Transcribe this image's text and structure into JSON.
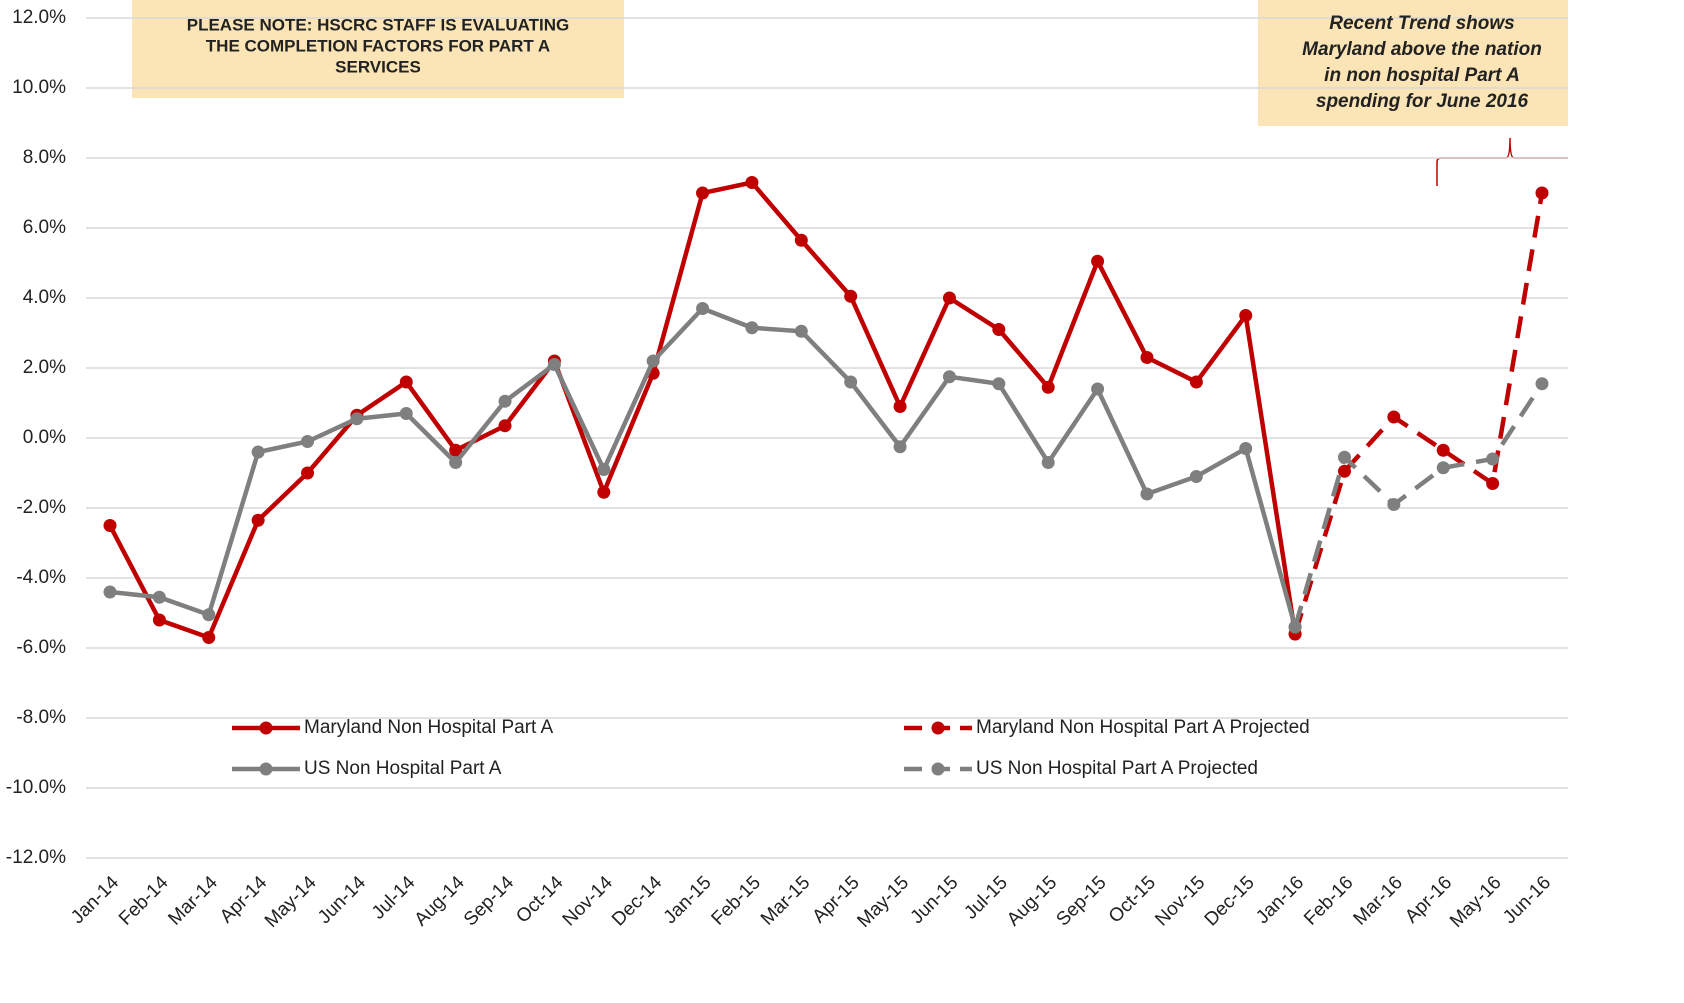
{
  "chart_data": {
    "type": "line",
    "categories": [
      "Jan-14",
      "Feb-14",
      "Mar-14",
      "Apr-14",
      "May-14",
      "Jun-14",
      "Jul-14",
      "Aug-14",
      "Sep-14",
      "Oct-14",
      "Nov-14",
      "Dec-14",
      "Jan-15",
      "Feb-15",
      "Mar-15",
      "Apr-15",
      "May-15",
      "Jun-15",
      "Jul-15",
      "Aug-15",
      "Sep-15",
      "Oct-15",
      "Nov-15",
      "Dec-15",
      "Jan-16",
      "Feb-16",
      "Mar-16",
      "Apr-16",
      "May-16",
      "Jun-16"
    ],
    "series": [
      {
        "name": "Maryland Non Hospital Part A",
        "color": "#c00000",
        "dashed": false,
        "values": [
          -2.5,
          -5.2,
          -5.7,
          -2.35,
          -1.0,
          0.65,
          1.6,
          -0.35,
          0.35,
          2.2,
          -1.55,
          1.85,
          7.0,
          7.3,
          5.65,
          4.05,
          0.9,
          4.0,
          3.1,
          1.45,
          5.05,
          2.3,
          1.6,
          3.5,
          -5.6,
          null,
          null,
          null,
          null,
          null
        ]
      },
      {
        "name": "Maryland Non Hospital Part A Projected",
        "color": "#c00000",
        "dashed": true,
        "values": [
          null,
          null,
          null,
          null,
          null,
          null,
          null,
          null,
          null,
          null,
          null,
          null,
          null,
          null,
          null,
          null,
          null,
          null,
          null,
          null,
          null,
          null,
          null,
          null,
          -5.6,
          -0.95,
          0.6,
          -0.35,
          -1.3,
          7.0
        ]
      },
      {
        "name": "US Non Hospital Part A",
        "color": "#7f7f7f",
        "dashed": false,
        "values": [
          -4.4,
          -4.55,
          -5.05,
          -0.4,
          -0.1,
          0.55,
          0.7,
          -0.7,
          1.05,
          2.1,
          -0.9,
          2.2,
          3.7,
          3.15,
          3.05,
          1.6,
          -0.25,
          1.75,
          1.55,
          -0.7,
          1.4,
          -1.6,
          -1.1,
          -0.3,
          -5.4,
          null,
          null,
          null,
          null,
          null
        ]
      },
      {
        "name": "US Non Hospital Part A Projected",
        "color": "#7f7f7f",
        "dashed": true,
        "values": [
          null,
          null,
          null,
          null,
          null,
          null,
          null,
          null,
          null,
          null,
          null,
          null,
          null,
          null,
          null,
          null,
          null,
          null,
          null,
          null,
          null,
          null,
          null,
          null,
          -5.4,
          -0.55,
          -1.9,
          -0.85,
          -0.6,
          1.55
        ]
      }
    ],
    "ylim": [
      -12,
      12
    ],
    "yticks": [
      {
        "value": -12,
        "label": "-12.0%"
      },
      {
        "value": -10,
        "label": "-10.0%"
      },
      {
        "value": -8,
        "label": "-8.0%"
      },
      {
        "value": -6,
        "label": "-6.0%"
      },
      {
        "value": -4,
        "label": "-4.0%"
      },
      {
        "value": -2,
        "label": "-2.0%"
      },
      {
        "value": 0,
        "label": "0.0%"
      },
      {
        "value": 2,
        "label": "2.0%"
      },
      {
        "value": 4,
        "label": "4.0%"
      },
      {
        "value": 6,
        "label": "6.0%"
      },
      {
        "value": 8,
        "label": "8.0%"
      },
      {
        "value": 10,
        "label": "10.0%"
      },
      {
        "value": 12,
        "label": "12.0%"
      }
    ],
    "grid": true,
    "annotations": [
      {
        "lines": [
          "PLEASE NOTE: HSCRC STAFF IS EVALUATING",
          "THE COMPLETION FACTORS FOR PART A",
          "SERVICES"
        ]
      },
      {
        "lines": [
          "Recent Trend shows",
          "Maryland above the nation",
          "in non hospital Part A",
          "spending for June 2016"
        ]
      }
    ]
  }
}
